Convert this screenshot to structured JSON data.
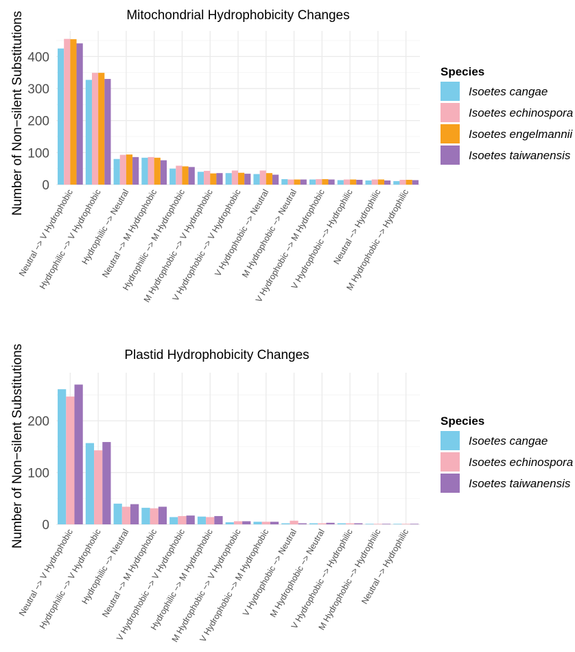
{
  "chart_data": [
    {
      "type": "bar",
      "title": "Mitochondrial Hydrophobicity Changes",
      "xlabel": "",
      "ylabel": "Number of Non−silent Substitutions",
      "ylim": [
        0,
        480
      ],
      "yticks": [
        0,
        100,
        200,
        300,
        400
      ],
      "grid": true,
      "legend": {
        "title": "Species",
        "position": "right"
      },
      "categories": [
        "Neutral −> V Hydrophobic",
        "Hydrophilic −> V Hydrophobic",
        "Hydrophilic −> Neutral",
        "Neutral −> M Hydrophobic",
        "Hydrophilic −> M Hydrophobic",
        "M Hydrophobic −> V Hydrophobic",
        "V Hydrophobic −> V Hydrophobic",
        "V Hydrophobic −> Neutral",
        "M Hydrophobic −> Neutral",
        "V Hydrophobic −> M Hydrophobic",
        "V Hydrophobic −> Hydrophilic",
        "Neutral −> Hydrophilic",
        "M Hydrophobic −> Hydrophilic"
      ],
      "series": [
        {
          "name": "Isoetes cangae",
          "color": "#7accea",
          "values": [
            425,
            327,
            80,
            84,
            50,
            40,
            36,
            33,
            17,
            16,
            14,
            13,
            11
          ]
        },
        {
          "name": "Isoetes echinospora",
          "color": "#f6afba",
          "values": [
            455,
            349,
            93,
            86,
            59,
            43,
            44,
            44,
            16,
            17,
            16,
            16,
            15
          ]
        },
        {
          "name": "Isoetes engelmannii",
          "color": "#f7a01c",
          "values": [
            454,
            349,
            94,
            84,
            57,
            35,
            37,
            36,
            16,
            17,
            16,
            16,
            15
          ]
        },
        {
          "name": "Isoetes taiwanensis",
          "color": "#9b73b8",
          "values": [
            441,
            330,
            86,
            76,
            55,
            36,
            34,
            31,
            16,
            16,
            15,
            13,
            14
          ]
        }
      ]
    },
    {
      "type": "bar",
      "title": "Plastid Hydrophobicity Changes",
      "xlabel": "",
      "ylabel": "Number of Non−silent Substitutions",
      "ylim": [
        0,
        293
      ],
      "yticks": [
        0,
        100,
        200
      ],
      "grid": true,
      "legend": {
        "title": "Species",
        "position": "right"
      },
      "categories": [
        "Neutral −> V Hydrophobic",
        "Hydrophilic −> V Hydrophobic",
        "Hydrophilic −> Neutral",
        "Neutral −> M Hydrophobic",
        "V Hydrophobic −> V Hydrophobic",
        "Hydrophilic −> M Hydrophobic",
        "M Hydrophobic −> V Hydrophobic",
        "V Hydrophobic −> M Hydrophobic",
        "V Hydrophobic −> Neutral",
        "M Hydrophobic −> Neutral",
        "V Hydrophobic −> Hydrophilic",
        "M Hydrophobic −> Hydrophilic",
        "Neutral −> Hydrophilic"
      ],
      "series": [
        {
          "name": "Isoetes cangae",
          "color": "#7accea",
          "values": [
            261,
            157,
            40,
            32,
            14,
            15,
            4,
            5,
            2,
            2,
            2,
            1,
            1
          ]
        },
        {
          "name": "Isoetes echinospora",
          "color": "#f6afba",
          "values": [
            247,
            143,
            34,
            31,
            16,
            14,
            6,
            5,
            7,
            2,
            2,
            1,
            1
          ]
        },
        {
          "name": "Isoetes taiwanensis",
          "color": "#9b73b8",
          "values": [
            270,
            159,
            39,
            34,
            17,
            16,
            6,
            5,
            2,
            3,
            2,
            1,
            1
          ]
        }
      ]
    }
  ]
}
